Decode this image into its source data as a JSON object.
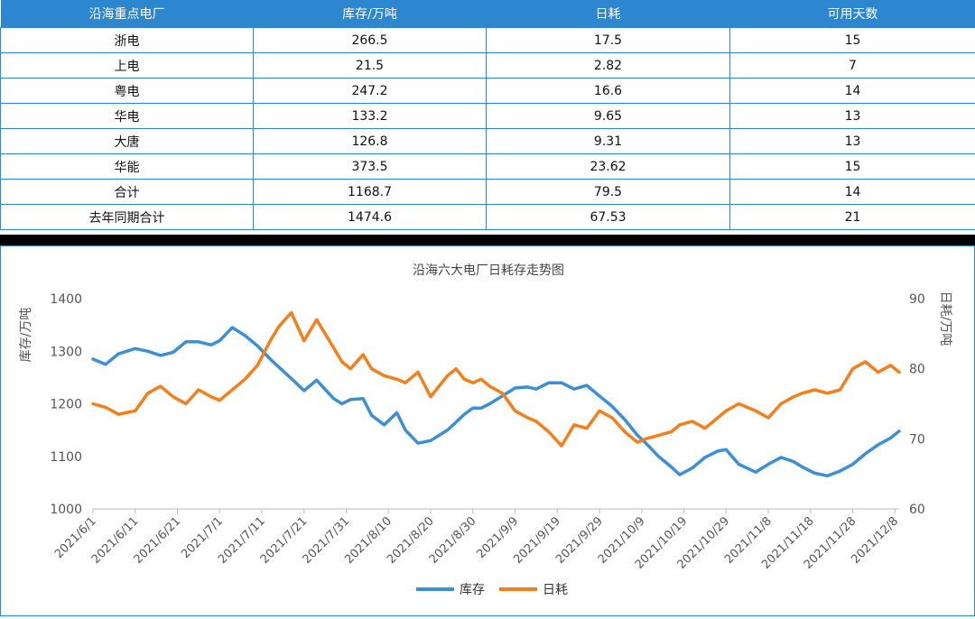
{
  "table": {
    "headers": [
      "沿海重点电厂",
      "库存/万吨",
      "日耗",
      "可用天数"
    ],
    "rows": [
      [
        "浙电",
        "266.5",
        "17.5",
        "15"
      ],
      [
        "上电",
        "21.5",
        "2.82",
        "7"
      ],
      [
        "粤电",
        "247.2",
        "16.6",
        "14"
      ],
      [
        "华电",
        "133.2",
        "9.65",
        "13"
      ],
      [
        "大唐",
        "126.8",
        "9.31",
        "13"
      ],
      [
        "华能",
        "373.5",
        "23.62",
        "15"
      ],
      [
        "合计",
        "1168.7",
        "79.5",
        "14"
      ],
      [
        "去年同期合计",
        "1474.6",
        "67.53",
        "21"
      ]
    ]
  },
  "chart_data": {
    "type": "line",
    "title": "沿海六大电厂日耗存走势图",
    "ylabel_left": "库存/万吨",
    "ylabel_right": "日耗/万吨",
    "ylim_left": [
      1000,
      1400
    ],
    "ylim_right": [
      60,
      90
    ],
    "yticks_left": [
      1000,
      1100,
      1200,
      1300,
      1400
    ],
    "yticks_right": [
      60,
      70,
      80,
      90
    ],
    "x_tick_labels": [
      "2021/6/1",
      "2021/6/11",
      "2021/6/21",
      "2021/7/1",
      "2021/7/11",
      "2021/7/21",
      "2021/7/31",
      "2021/8/10",
      "2021/8/20",
      "2021/8/30",
      "2021/9/9",
      "2021/9/19",
      "2021/9/29",
      "2021/10/9",
      "2021/10/19",
      "2021/10/29",
      "2021/11/8",
      "2021/11/18",
      "2021/11/28",
      "2021/12/8"
    ],
    "legend_position": "bottom",
    "grid": false,
    "series": [
      {
        "name": "库存",
        "axis": "left",
        "color": "#3a8fd6",
        "x": [
          0,
          3,
          6,
          10,
          13,
          16,
          19,
          22,
          25,
          28,
          30,
          33,
          36,
          39,
          42,
          44,
          47,
          50,
          53,
          57,
          59,
          61,
          64,
          66,
          69,
          72,
          74,
          77,
          80,
          84,
          86,
          88,
          90,
          92,
          94,
          97,
          100,
          103,
          105,
          108,
          111,
          114,
          117,
          120,
          123,
          126,
          129,
          131,
          134,
          137,
          139,
          142,
          145,
          148,
          150,
          153,
          157,
          160,
          163,
          166,
          168,
          171,
          174,
          177,
          180,
          183,
          186,
          189,
          191
        ],
        "y": [
          1285,
          1275,
          1295,
          1305,
          1300,
          1292,
          1298,
          1318,
          1318,
          1312,
          1320,
          1345,
          1330,
          1310,
          1285,
          1270,
          1248,
          1225,
          1245,
          1210,
          1200,
          1208,
          1210,
          1178,
          1160,
          1183,
          1150,
          1125,
          1130,
          1150,
          1165,
          1180,
          1192,
          1192,
          1200,
          1215,
          1230,
          1232,
          1228,
          1240,
          1240,
          1228,
          1235,
          1215,
          1195,
          1170,
          1140,
          1125,
          1100,
          1080,
          1065,
          1078,
          1098,
          1110,
          1113,
          1085,
          1070,
          1085,
          1098,
          1090,
          1080,
          1068,
          1063,
          1072,
          1085,
          1105,
          1122,
          1135,
          1148
        ]
      },
      {
        "name": "日耗",
        "axis": "right",
        "color": "#f47f1b",
        "x": [
          0,
          3,
          6,
          10,
          13,
          16,
          19,
          22,
          25,
          28,
          30,
          33,
          36,
          39,
          42,
          44,
          47,
          50,
          53,
          57,
          59,
          61,
          64,
          66,
          69,
          72,
          74,
          77,
          80,
          84,
          86,
          88,
          90,
          92,
          94,
          97,
          100,
          103,
          105,
          108,
          111,
          114,
          117,
          120,
          123,
          126,
          129,
          131,
          134,
          137,
          139,
          142,
          145,
          148,
          150,
          153,
          157,
          160,
          163,
          166,
          168,
          171,
          174,
          177,
          180,
          183,
          186,
          189,
          191
        ],
        "y": [
          75,
          74.5,
          73.5,
          74,
          76.5,
          77.5,
          76,
          75,
          77,
          76,
          75.5,
          77,
          78.5,
          80.5,
          84,
          86,
          88,
          84,
          87,
          83,
          81,
          80,
          82,
          80,
          79,
          78.5,
          78,
          79.5,
          76,
          79,
          80,
          78.5,
          78,
          78.5,
          77.5,
          76.5,
          74,
          73,
          72.5,
          71,
          69,
          72,
          71.5,
          74,
          73,
          71,
          69.5,
          70,
          70.5,
          71,
          72,
          72.5,
          71.5,
          73,
          74,
          75,
          74,
          73,
          75,
          76,
          76.5,
          77,
          76.5,
          77,
          80,
          81,
          79.5,
          80.5,
          79.5
        ]
      }
    ]
  }
}
